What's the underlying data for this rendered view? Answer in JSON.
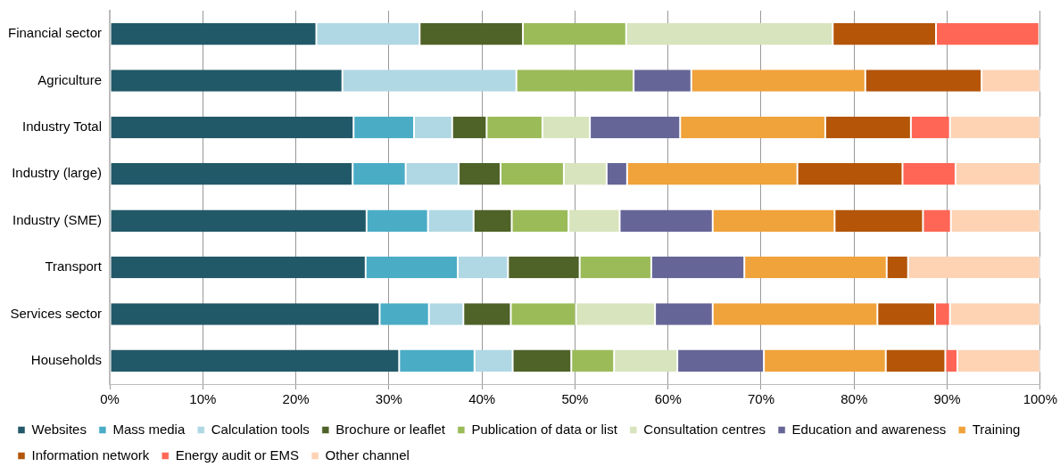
{
  "chart_data": {
    "type": "bar",
    "orientation": "horizontal",
    "stacked": true,
    "categories": [
      "Financial sector",
      "Agriculture",
      "Industry Total",
      "Industry (large)",
      "Industry (SME)",
      "Transport",
      "Services sector",
      "Households"
    ],
    "series": [
      {
        "name": "Websites",
        "color": "#225968",
        "values": [
          22.2,
          25,
          26.2,
          26.1,
          27.6,
          27.5,
          29.0,
          31.1
        ]
      },
      {
        "name": "Mass media",
        "color": "#4bacc6",
        "values": [
          0,
          0,
          6.5,
          5.7,
          6.6,
          9.9,
          5.3,
          8.1
        ]
      },
      {
        "name": "Calculation tools",
        "color": "#b0d8e4",
        "values": [
          11.1,
          18.7,
          4.1,
          5.7,
          4.9,
          5.4,
          3.7,
          4.1
        ]
      },
      {
        "name": "Brochure or leaflet",
        "color": "#4f6228",
        "values": [
          11.1,
          0,
          3.7,
          4.5,
          4.1,
          7.7,
          5.1,
          6.3
        ]
      },
      {
        "name": "Publication of data or list",
        "color": "#9bbb59",
        "values": [
          11.1,
          12.6,
          6.0,
          6.8,
          6.1,
          7.7,
          7.0,
          4.6
        ]
      },
      {
        "name": "Consultation centres",
        "color": "#d7e4bd",
        "values": [
          22.2,
          0,
          5.1,
          4.6,
          5.5,
          0,
          8.5,
          6.8
        ]
      },
      {
        "name": "Education and awareness",
        "color": "#656597",
        "values": [
          0,
          6.2,
          9.7,
          2.2,
          10.0,
          10.0,
          6.2,
          9.3
        ]
      },
      {
        "name": "Training",
        "color": "#f0a23b",
        "values": [
          0,
          18.7,
          15.6,
          18.3,
          13.1,
          15.3,
          17.7,
          13.1
        ]
      },
      {
        "name": "Information network",
        "color": "#b45508",
        "values": [
          11.1,
          12.5,
          9.2,
          11.3,
          9.5,
          2.3,
          6.2,
          6.4
        ]
      },
      {
        "name": "Energy audit or EMS",
        "color": "#ff6655",
        "values": [
          11.1,
          0,
          4.2,
          5.7,
          3.0,
          0,
          1.6,
          1.3
        ]
      },
      {
        "name": "Other channel",
        "color": "#fdd3b4",
        "values": [
          0,
          6.3,
          9.7,
          9.1,
          9.6,
          14.2,
          9.7,
          8.9
        ]
      }
    ],
    "xlim": [
      0,
      100
    ],
    "xticks": [
      {
        "value": 0,
        "label": "0%"
      },
      {
        "value": 10,
        "label": "10%"
      },
      {
        "value": 20,
        "label": "20%"
      },
      {
        "value": 30,
        "label": "30%"
      },
      {
        "value": 40,
        "label": "40%"
      },
      {
        "value": 50,
        "label": "50%"
      },
      {
        "value": 60,
        "label": "60%"
      },
      {
        "value": 70,
        "label": "70%"
      },
      {
        "value": 80,
        "label": "80%"
      },
      {
        "value": 90,
        "label": "90%"
      },
      {
        "value": 100,
        "label": "100%"
      }
    ],
    "grid": "x",
    "legend": "bottom"
  }
}
